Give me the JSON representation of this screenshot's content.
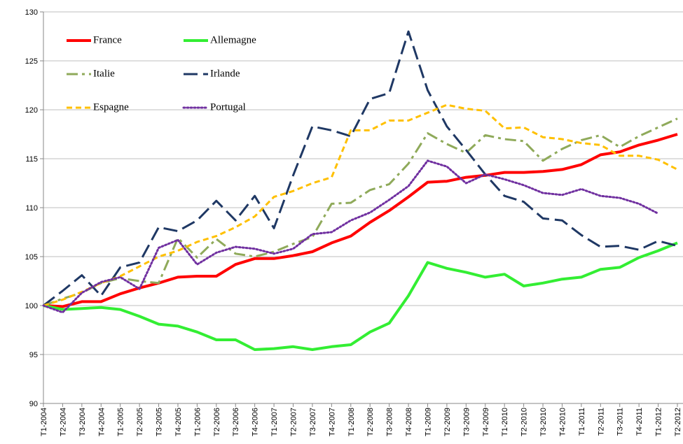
{
  "chart_data": {
    "type": "line",
    "categories": [
      "T1-2004",
      "T2-2004",
      "T3-2004",
      "T4-2004",
      "T1-2005",
      "T2-2005",
      "T3-2005",
      "T4-2005",
      "T1-2006",
      "T2-2006",
      "T3-2006",
      "T4-2006",
      "T1-2007",
      "T2-2007",
      "T3-2007",
      "T4-2007",
      "T1-2008",
      "T2-2008",
      "T3-2008",
      "T4-2008",
      "T1-2009",
      "T2-2009",
      "T3-2009",
      "T4-2009",
      "T1-2010",
      "T2-2010",
      "T3-2010",
      "T4-2010",
      "T1-2011",
      "T2-2011",
      "T3-2011",
      "T4-2011",
      "T1-2012",
      "T2-2012"
    ],
    "ylim": [
      90,
      130
    ],
    "yticks": [
      90,
      95,
      100,
      105,
      110,
      115,
      120,
      125,
      130
    ],
    "grid": true,
    "series": [
      {
        "name": "France",
        "color": "#ff0000",
        "dash": "solid",
        "values": [
          100,
          99.9,
          100.4,
          100.4,
          101.2,
          101.8,
          102.3,
          102.9,
          103.0,
          103.0,
          104.2,
          104.8,
          104.8,
          105.1,
          105.5,
          106.4,
          107.1,
          108.5,
          109.7,
          111.1,
          112.6,
          112.7,
          113.1,
          113.3,
          113.6,
          113.6,
          113.7,
          113.9,
          114.4,
          115.4,
          115.7,
          116.4,
          116.9,
          117.5
        ]
      },
      {
        "name": "Allemagne",
        "color": "#33ee33",
        "dash": "solid",
        "values": [
          100,
          99.6,
          99.7,
          99.8,
          99.6,
          98.9,
          98.1,
          97.9,
          97.3,
          96.5,
          96.5,
          95.5,
          95.6,
          95.8,
          95.5,
          95.8,
          96.0,
          97.3,
          98.2,
          101.0,
          104.4,
          103.8,
          103.4,
          102.9,
          103.2,
          102.0,
          102.3,
          102.7,
          102.9,
          103.7,
          103.9,
          104.9,
          105.6,
          106.4
        ]
      },
      {
        "name": "Italie",
        "color": "#8faa5a",
        "dash": "dashdot",
        "values": [
          100,
          100.7,
          101.3,
          102.3,
          102.8,
          102.5,
          102.3,
          106.9,
          104.9,
          106.8,
          105.3,
          105.0,
          105.5,
          106.3,
          107.0,
          110.4,
          110.5,
          111.8,
          112.4,
          114.5,
          117.6,
          116.5,
          115.6,
          117.4,
          117.0,
          116.8,
          114.8,
          116.0,
          116.9,
          117.4,
          116.2,
          117.3,
          118.2,
          119.1
        ]
      },
      {
        "name": "Irlande",
        "color": "#1f3864",
        "dash": "longdash",
        "values": [
          100,
          101.5,
          103.1,
          101.0,
          103.9,
          104.4,
          108.0,
          107.6,
          108.7,
          110.7,
          108.7,
          111.2,
          107.9,
          113.3,
          118.3,
          117.9,
          117.3,
          121.1,
          121.7,
          128.0,
          122.0,
          118.3,
          115.9,
          113.4,
          111.2,
          110.6,
          108.9,
          108.7,
          107.2,
          106.0,
          106.1,
          105.7,
          106.6,
          106.1
        ]
      },
      {
        "name": "Espagne",
        "color": "#ffc000",
        "dash": "dash",
        "values": [
          100,
          100.6,
          101.4,
          102.3,
          103.0,
          104.0,
          105.0,
          105.6,
          106.5,
          107.1,
          108.0,
          109.1,
          111.1,
          111.7,
          112.5,
          113.1,
          117.9,
          117.9,
          118.9,
          118.9,
          119.7,
          120.5,
          120.1,
          119.9,
          118.1,
          118.2,
          117.2,
          117.0,
          116.6,
          116.4,
          115.3,
          115.3,
          114.9,
          113.9
        ]
      },
      {
        "name": "Portugal",
        "color": "#7030a0",
        "dash": "dot",
        "values": [
          100,
          99.3,
          101.3,
          102.4,
          102.9,
          101.7,
          105.9,
          106.7,
          104.2,
          105.4,
          106.0,
          105.8,
          105.3,
          105.8,
          107.3,
          107.5,
          108.7,
          109.5,
          110.8,
          112.2,
          114.8,
          114.2,
          112.5,
          113.4,
          112.9,
          112.3,
          111.5,
          111.3,
          111.9,
          111.2,
          111.0,
          110.4,
          109.4,
          null
        ]
      }
    ]
  }
}
